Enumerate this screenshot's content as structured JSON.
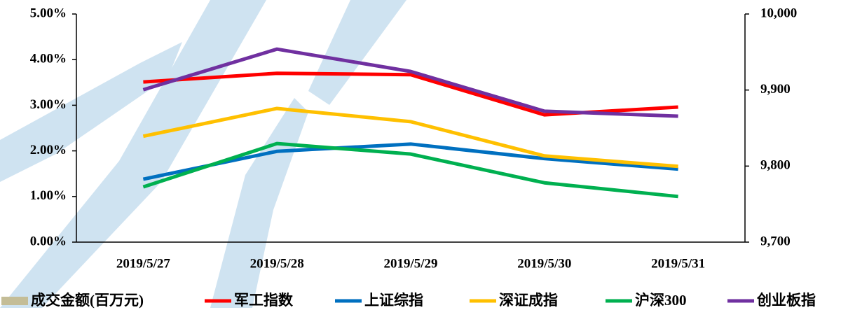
{
  "chart_data": {
    "type": "line",
    "categories": [
      "2019/5/27",
      "2019/5/28",
      "2019/5/29",
      "2019/5/30",
      "2019/5/31"
    ],
    "series": [
      {
        "name": "成交金额(百万元)",
        "color": "#c4bd97",
        "type": "bar",
        "axis": "y2",
        "values": [
          null,
          null,
          null,
          null,
          null
        ]
      },
      {
        "name": "军工指数",
        "color": "#ff0000",
        "values": [
          3.51,
          3.7,
          3.67,
          2.79,
          2.96
        ]
      },
      {
        "name": "上证综指",
        "color": "#0070c0",
        "values": [
          1.38,
          1.99,
          2.15,
          1.83,
          1.6
        ]
      },
      {
        "name": "深证成指",
        "color": "#ffc000",
        "values": [
          2.32,
          2.93,
          2.64,
          1.89,
          1.66
        ]
      },
      {
        "name": "沪深300",
        "color": "#00b050",
        "values": [
          1.21,
          2.16,
          1.93,
          1.3,
          1.0
        ]
      },
      {
        "name": "创业板指",
        "color": "#7030a0",
        "values": [
          3.34,
          4.23,
          3.74,
          2.87,
          2.76
        ]
      }
    ],
    "ylim": [
      0,
      5
    ],
    "yticks": [
      {
        "value": 0,
        "label": "0.00%"
      },
      {
        "value": 1,
        "label": "1.00%"
      },
      {
        "value": 2,
        "label": "2.00%"
      },
      {
        "value": 3,
        "label": "3.00%"
      },
      {
        "value": 4,
        "label": "4.00%"
      },
      {
        "value": 5,
        "label": "5.00%"
      }
    ],
    "y2lim": [
      9700,
      10000
    ],
    "y2ticks": [
      {
        "value": 9700,
        "label": "9,700"
      },
      {
        "value": 9800,
        "label": "9,800"
      },
      {
        "value": 9900,
        "label": "9,900"
      },
      {
        "value": 10000,
        "label": "10,000"
      }
    ],
    "legend": "bottom"
  }
}
